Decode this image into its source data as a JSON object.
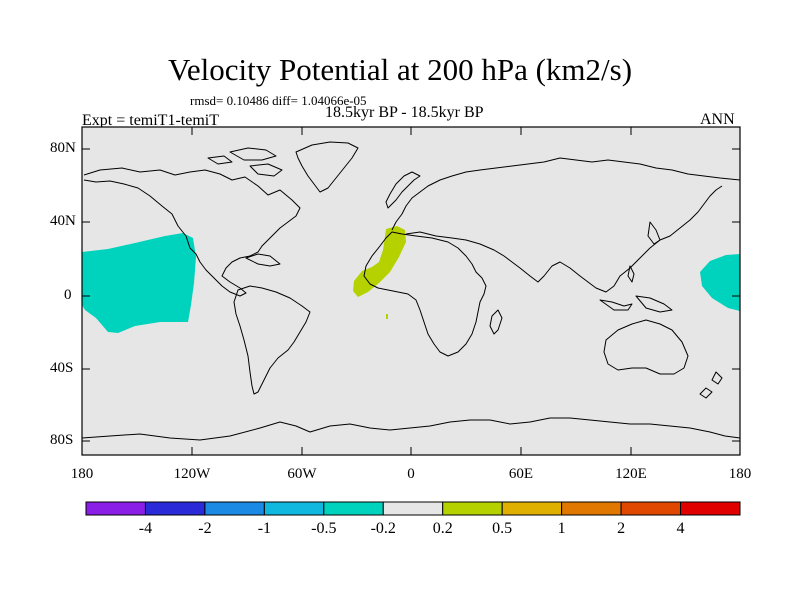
{
  "title": "Velocity Potential at 200 hPa (km2/s)",
  "stats": "rmsd= 0.10486 diff= 1.04066e-05",
  "subtitle": "18.5kyr BP - 18.5kyr BP",
  "left_label": "Expt = temiT1-temiT",
  "right_label": "ANN",
  "map": {
    "projection": "cylindrical-equidistant",
    "background_color": "#e6e6e6",
    "y_tick_labels": [
      "80N",
      "40N",
      "0",
      "40S",
      "80S"
    ],
    "x_tick_labels": [
      "180",
      "120W",
      "60W",
      "0",
      "60E",
      "120E",
      "180"
    ]
  },
  "anomalies": [
    {
      "sign": "negative",
      "color": "#00d3bd"
    },
    {
      "sign": "positive",
      "color": "#b5d200"
    }
  ],
  "colorbar": {
    "labels": [
      "-4",
      "-2",
      "-1",
      "-0.5",
      "-0.2",
      "0.2",
      "0.5",
      "1",
      "2",
      "4"
    ],
    "colors": [
      "#8a1ee6",
      "#2a2ad8",
      "#1a8ae4",
      "#10b8e0",
      "#00d3bd",
      "#e6e6e6",
      "#b5d200",
      "#e0b000",
      "#e07800",
      "#e04800",
      "#e00000"
    ]
  }
}
